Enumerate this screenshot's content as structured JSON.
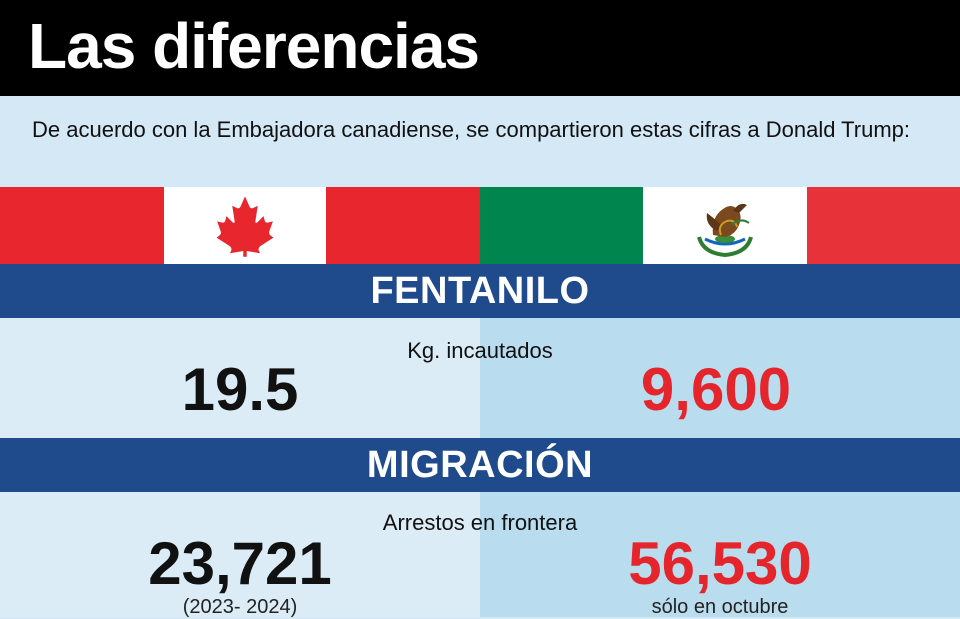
{
  "title": "Las diferencias",
  "intro": "De acuerdo con la Embajadora canadiense, se compartieron estas cifras a Donald Trump:",
  "flags": {
    "canada_icon": "maple-leaf-icon",
    "mexico_icon": "eagle-coat-of-arms-icon",
    "colors": {
      "canada_red": "#e8262e",
      "mexico_green": "#00854f",
      "mexico_red": "#e8323a",
      "white": "#ffffff"
    }
  },
  "sections": {
    "fentanilo": {
      "heading": "FENTANILO",
      "label": "Kg. incautados",
      "canada_value": "19.5",
      "mexico_value": "9,600"
    },
    "migracion": {
      "heading": "MIGRACIÓN",
      "label": "Arrestos en frontera",
      "canada_value": "23,721",
      "canada_note": "(2023- 2024)",
      "mexico_value": "56,530",
      "mexico_note": "sólo en octubre"
    }
  },
  "colors": {
    "header_bg": "#000000",
    "section_bar": "#1f4a8c",
    "highlight_red": "#e4262c",
    "panel_light": "#dcecf7",
    "panel_right": "#b9dcef"
  }
}
